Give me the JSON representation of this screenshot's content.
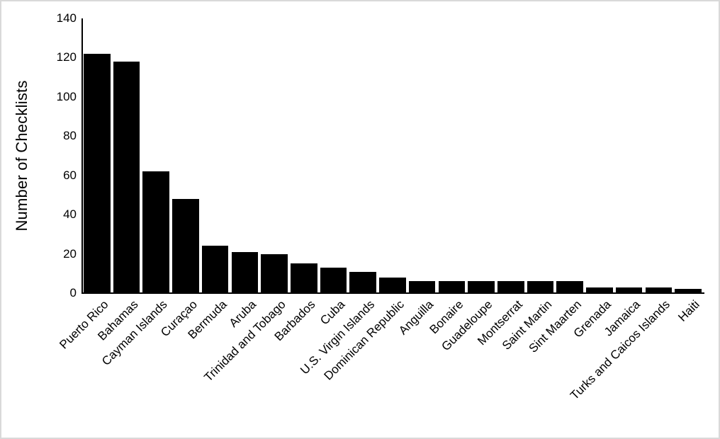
{
  "chart_data": {
    "type": "bar",
    "title": "",
    "xlabel": "",
    "ylabel": "Number of Checklists",
    "ylim": [
      0,
      140
    ],
    "yticks": [
      0,
      20,
      40,
      60,
      80,
      100,
      120,
      140
    ],
    "grid": false,
    "legend": false,
    "bar_color": "#000000",
    "axis_color": "#000000",
    "frame_border_color": "#d9d9d9",
    "categories": [
      "Puerto Rico",
      "Bahamas",
      "Cayman Islands",
      "Curaçao",
      "Bermuda",
      "Aruba",
      "Trinidad and Tobago",
      "Barbados",
      "Cuba",
      "U.S. Virgin Islands",
      "Dominican Republic",
      "Anguilla",
      "Bonaire",
      "Guadeloupe",
      "Montserrat",
      "Saint Martin",
      "Sint Maarten",
      "Grenada",
      "Jamaica",
      "Turks and Caicos Islands",
      "Haiti"
    ],
    "values": [
      122,
      118,
      62,
      48,
      24,
      21,
      20,
      15,
      13,
      11,
      8,
      6,
      6,
      6,
      6,
      6,
      6,
      3,
      3,
      3,
      2
    ]
  }
}
